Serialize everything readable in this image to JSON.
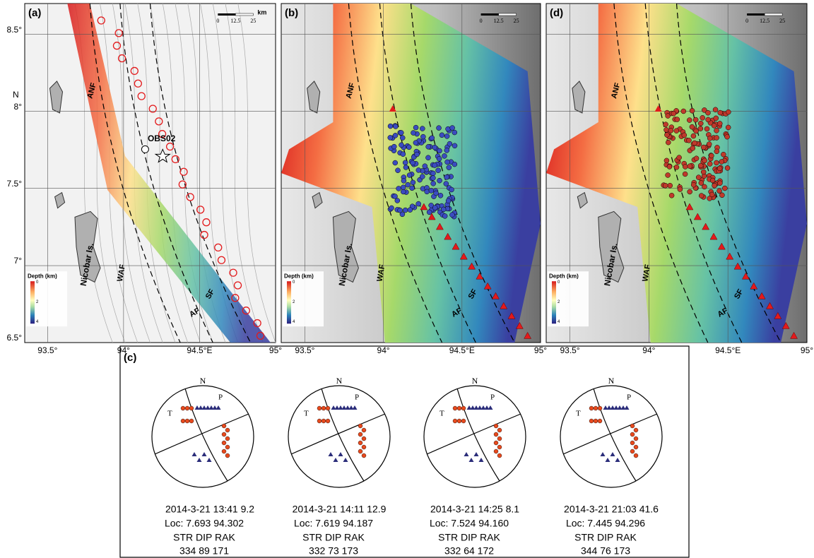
{
  "panels": [
    {
      "label": "(a)",
      "scale_bar": {
        "ticks": [
          "0",
          "12.5",
          "25"
        ],
        "unit": "km"
      },
      "faults": [
        "ANF",
        "WAF",
        "AF",
        "SF"
      ],
      "island": "Nicobar Is.",
      "station": "OBS02",
      "legend": {
        "title": "Depth (km)",
        "ticks": [
          "0",
          "2",
          "4"
        ]
      },
      "lon_labels": [
        "93.5°",
        "94°",
        "94.5°E",
        "95°"
      ]
    },
    {
      "label": "(b)",
      "scale_bar": {
        "ticks": [
          "0",
          "12.5",
          "25"
        ]
      },
      "faults": [
        "ANF",
        "WAF",
        "AF",
        "SF"
      ],
      "island": "Nicobar Is.",
      "legend": {
        "title": "Depth (km)",
        "ticks": [
          "0",
          "2",
          "4"
        ]
      },
      "lon_labels": [
        "93.5°",
        "94°",
        "94.5°E",
        "95°"
      ]
    },
    {
      "label": "(d)",
      "scale_bar": {
        "ticks": [
          "0",
          "12.5",
          "25"
        ]
      },
      "faults": [
        "ANF",
        "WAF",
        "AF",
        "SF"
      ],
      "island": "Nicobar Is.",
      "legend": {
        "title": "Depth (km)",
        "ticks": [
          "0",
          "2",
          "4"
        ]
      },
      "lon_labels": [
        "93.5°",
        "94°",
        "94.5°E",
        "95°"
      ]
    }
  ],
  "lat_labels": [
    "8.5°",
    "8°",
    "7.5°",
    "7°",
    "6.5°"
  ],
  "north_axis": "N",
  "focal_panel": {
    "label": "(c)",
    "mechanisms": [
      {
        "north": "N",
        "p": "P",
        "t": "T",
        "time": "2014-3-21 13:41 9.2",
        "loc": "Loc: 7.693  94.302",
        "header": "STR  DIP  RAK",
        "values": "334    89    171"
      },
      {
        "north": "N",
        "p": "P",
        "t": "T",
        "time": "2014-3-21 14:11 12.9",
        "loc": "Loc: 7.619  94.187",
        "header": "STR  DIP  RAK",
        "values": "332    73    173"
      },
      {
        "north": "N",
        "p": "P",
        "t": "T",
        "time": "2014-3-21 14:25 8.1",
        "loc": "Loc: 7.524  94.160",
        "header": "STR  DIP  RAK",
        "values": "332    64    172"
      },
      {
        "north": "N",
        "p": "P",
        "t": "T",
        "time": "2014-3-21 21:03 41.6",
        "loc": "Loc: 7.445  94.296",
        "header": "STR  DIP  RAK",
        "values": "344    76    173"
      }
    ]
  }
}
